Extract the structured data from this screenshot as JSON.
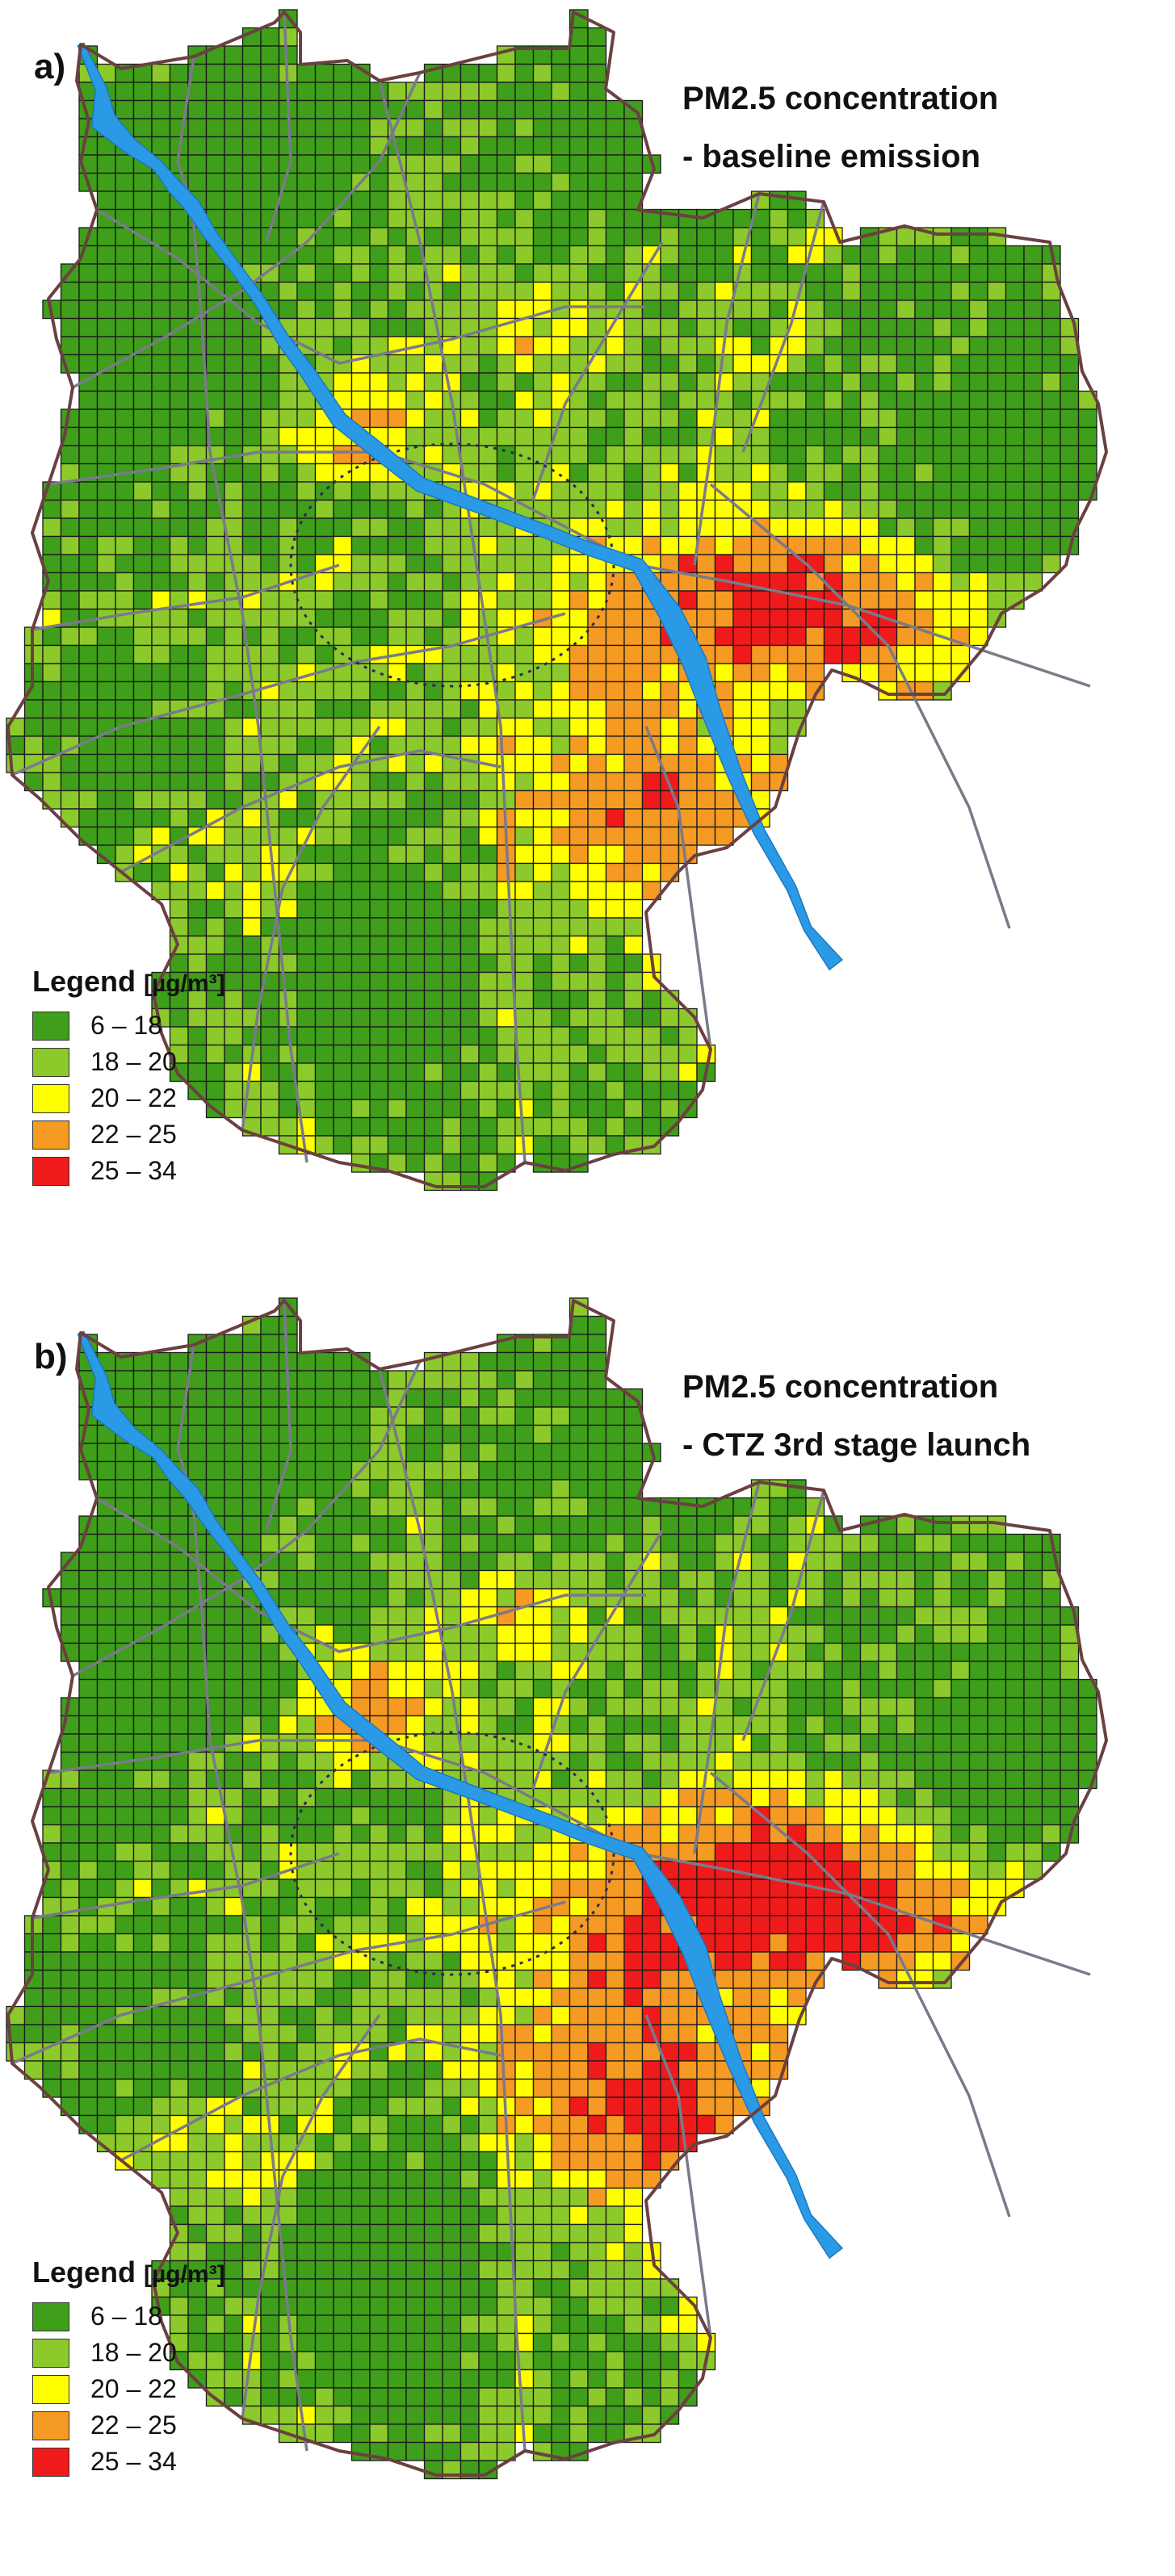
{
  "panels": [
    {
      "label": "a)",
      "title_line1": "PM2.5 concentration",
      "title_line2": "- baseline emission",
      "hotspot_boost": 0
    },
    {
      "label": "b)",
      "title_line1": "PM2.5 concentration",
      "title_line2": "- CTZ 3rd stage launch",
      "hotspot_boost": 0.4
    }
  ],
  "legend": {
    "title": "Legend",
    "unit": "[µg/m³]",
    "classes": [
      {
        "range": "6 – 18",
        "color": "#3f9e1a"
      },
      {
        "range": "18 – 20",
        "color": "#8cc92a"
      },
      {
        "range": "20 – 22",
        "color": "#ffff00"
      },
      {
        "range": "22 – 25",
        "color": "#f59a22"
      },
      {
        "range": "25 – 34",
        "color": "#ef1b1b"
      }
    ]
  },
  "colors": {
    "river": "#2a9ae6",
    "boundary": "#6b4040",
    "roads": "#7a7a8a",
    "gridline": "#1a1a1a",
    "zone_outline": "#2a2a55"
  }
}
